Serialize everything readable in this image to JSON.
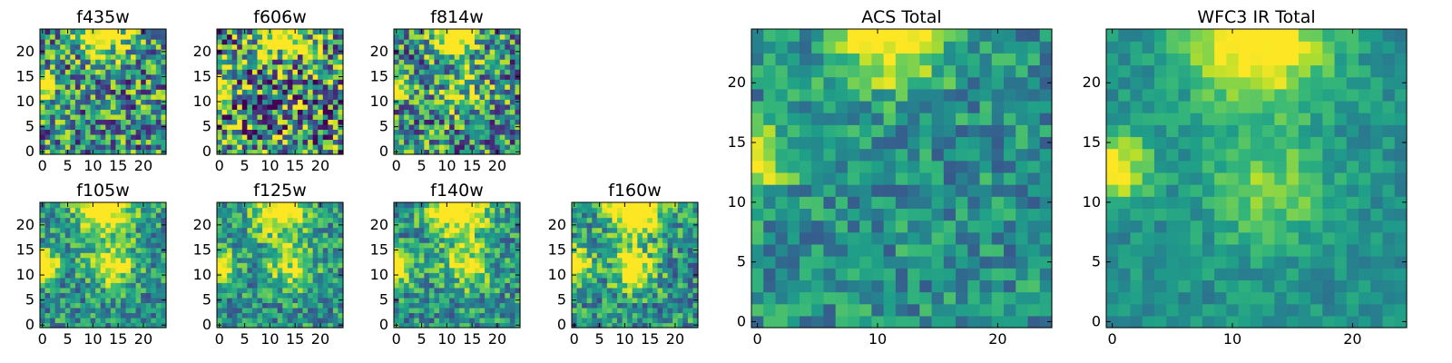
{
  "figure": {
    "colormap": "viridis",
    "background": "#ffffff",
    "grid": false
  },
  "chart_data": [
    {
      "type": "heatmap",
      "title": "f435w",
      "grid_size": 25,
      "xlim": [
        -0.5,
        24.5
      ],
      "ylim": [
        -0.5,
        24.5
      ],
      "xticks": [
        0,
        5,
        10,
        15,
        20
      ],
      "yticks": [
        0,
        5,
        10,
        15,
        20
      ],
      "value_range": [
        0,
        1
      ],
      "texture": 0.45,
      "hot_spots": [
        [
          12,
          24,
          3,
          0.9
        ],
        [
          0,
          13,
          1.6,
          0.85
        ]
      ]
    },
    {
      "type": "heatmap",
      "title": "f606w",
      "grid_size": 25,
      "xlim": [
        -0.5,
        24.5
      ],
      "ylim": [
        -0.5,
        24.5
      ],
      "xticks": [
        0,
        5,
        10,
        15,
        20
      ],
      "yticks": [
        0,
        5,
        10,
        15,
        20
      ],
      "value_range": [
        0,
        1
      ],
      "texture": 0.55,
      "hot_spots": [
        [
          12,
          24,
          3,
          0.9
        ],
        [
          0,
          13,
          1.6,
          0.8
        ]
      ]
    },
    {
      "type": "heatmap",
      "title": "f814w",
      "grid_size": 25,
      "xlim": [
        -0.5,
        24.5
      ],
      "ylim": [
        -0.5,
        24.5
      ],
      "xticks": [
        0,
        5,
        10,
        15,
        20
      ],
      "yticks": [
        0,
        5,
        10,
        15,
        20
      ],
      "value_range": [
        0,
        1
      ],
      "texture": 0.45,
      "hot_spots": [
        [
          12,
          24,
          3,
          0.9
        ],
        [
          0,
          13,
          1.6,
          0.8
        ],
        [
          13,
          12,
          3,
          0.3
        ]
      ]
    },
    {
      "type": "heatmap",
      "title": "f105w",
      "grid_size": 25,
      "xlim": [
        -0.5,
        24.5
      ],
      "ylim": [
        -0.5,
        24.5
      ],
      "xticks": [
        0,
        5,
        10,
        15,
        20
      ],
      "yticks": [
        0,
        5,
        10,
        15,
        20
      ],
      "value_range": [
        0,
        1
      ],
      "texture": 0.28,
      "hot_spots": [
        [
          12,
          24,
          4,
          0.8
        ],
        [
          0,
          12,
          2.2,
          0.8
        ],
        [
          14,
          12,
          3.5,
          0.45
        ]
      ]
    },
    {
      "type": "heatmap",
      "title": "f125w",
      "grid_size": 25,
      "xlim": [
        -0.5,
        24.5
      ],
      "ylim": [
        -0.5,
        24.5
      ],
      "xticks": [
        0,
        5,
        10,
        15,
        20
      ],
      "yticks": [
        0,
        5,
        10,
        15,
        20
      ],
      "value_range": [
        0,
        1
      ],
      "texture": 0.28,
      "hot_spots": [
        [
          12,
          24,
          4,
          0.7
        ],
        [
          0,
          12,
          2.2,
          0.75
        ],
        [
          14,
          12,
          3.5,
          0.4
        ]
      ]
    },
    {
      "type": "heatmap",
      "title": "f140w",
      "grid_size": 25,
      "xlim": [
        -0.5,
        24.5
      ],
      "ylim": [
        -0.5,
        24.5
      ],
      "xticks": [
        0,
        5,
        10,
        15,
        20
      ],
      "yticks": [
        0,
        5,
        10,
        15,
        20
      ],
      "value_range": [
        0,
        1
      ],
      "texture": 0.28,
      "hot_spots": [
        [
          12,
          24,
          4,
          0.8
        ],
        [
          0,
          12,
          2.2,
          0.8
        ],
        [
          14,
          12,
          3.5,
          0.4
        ]
      ]
    },
    {
      "type": "heatmap",
      "title": "f160w",
      "grid_size": 25,
      "xlim": [
        -0.5,
        24.5
      ],
      "ylim": [
        -0.5,
        24.5
      ],
      "xticks": [
        0,
        5,
        10,
        15,
        20
      ],
      "yticks": [
        0,
        5,
        10,
        15,
        20
      ],
      "value_range": [
        0,
        1
      ],
      "texture": 0.3,
      "hot_spots": [
        [
          12,
          24,
          4,
          0.85
        ],
        [
          0,
          12,
          2.2,
          0.85
        ],
        [
          12,
          11,
          3,
          0.6
        ]
      ]
    },
    {
      "type": "heatmap",
      "title": "ACS Total",
      "grid_size": 25,
      "xlim": [
        -0.5,
        24.5
      ],
      "ylim": [
        -0.5,
        24.5
      ],
      "xticks": [
        0,
        10,
        20
      ],
      "yticks": [
        0,
        5,
        10,
        15,
        20
      ],
      "value_range": [
        0,
        1
      ],
      "texture": 0.22,
      "hot_spots": [
        [
          11,
          24,
          3,
          0.65
        ],
        [
          0,
          13.5,
          1.8,
          0.6
        ]
      ]
    },
    {
      "type": "heatmap",
      "title": "WFC3 IR Total",
      "grid_size": 25,
      "xlim": [
        -0.5,
        24.5
      ],
      "ylim": [
        -0.5,
        24.5
      ],
      "xticks": [
        0,
        10,
        20
      ],
      "yticks": [
        0,
        5,
        10,
        15,
        20
      ],
      "value_range": [
        0,
        1
      ],
      "texture": 0.12,
      "hot_spots": [
        [
          12,
          24,
          4,
          0.65
        ],
        [
          0,
          13,
          2,
          0.6
        ],
        [
          13,
          11,
          3.5,
          0.3
        ]
      ]
    }
  ]
}
